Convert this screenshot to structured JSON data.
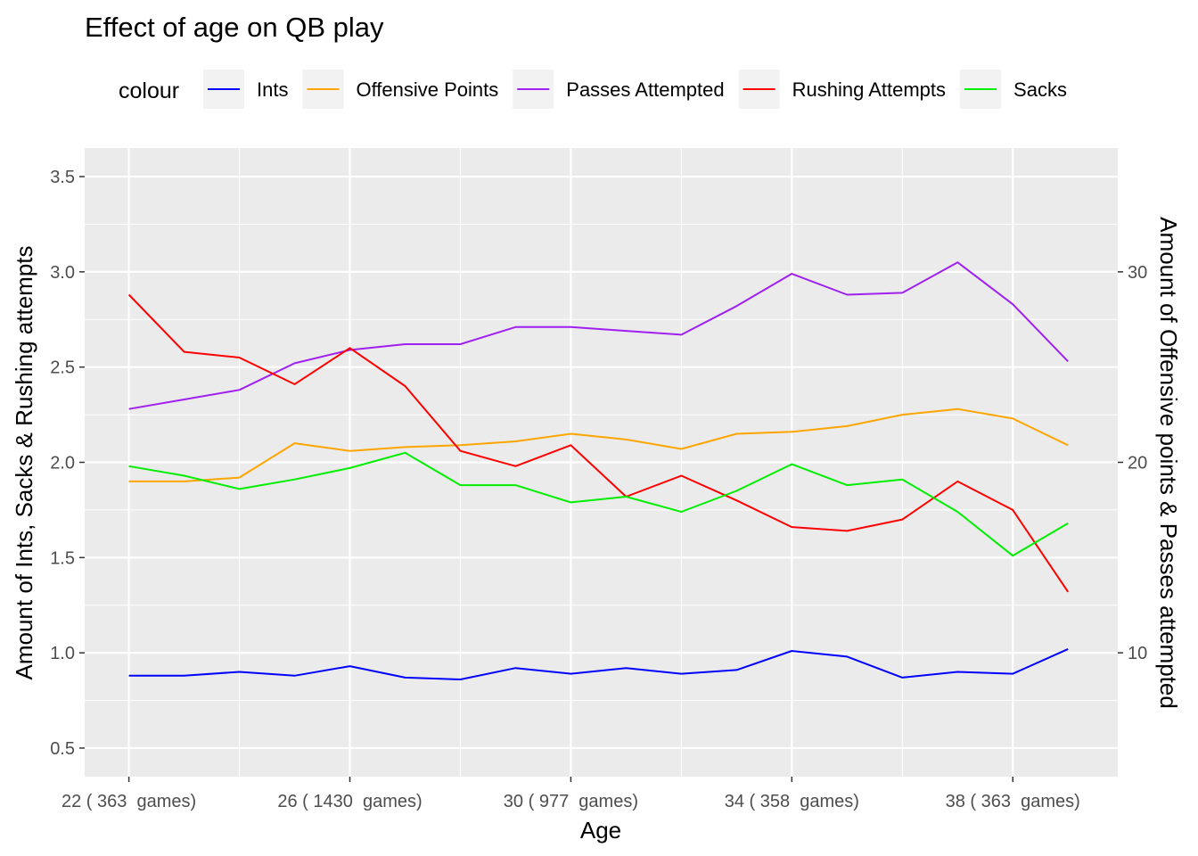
{
  "chart_data": {
    "type": "line",
    "title": "Effect of age on QB play",
    "xlabel": "Age",
    "ylabel_left": "Amount of Ints, Sacks & Rushing attempts",
    "ylabel_right": "Amount of Offensive points & Passes attempted",
    "legend_title": "colour",
    "legend_position": "top",
    "x": [
      22,
      23,
      24,
      25,
      26,
      27,
      28,
      29,
      30,
      31,
      32,
      33,
      34,
      35,
      36,
      37,
      38,
      39
    ],
    "x_ticks": [
      22,
      26,
      30,
      34,
      38
    ],
    "x_tick_labels": [
      "22 ( 363  games)",
      "26 ( 1430  games)",
      "30 ( 977  games)",
      "34 ( 358  games)",
      "38 ( 363  games)"
    ],
    "xlim": [
      21.2,
      39.9
    ],
    "ylim_left": [
      0.35,
      3.65
    ],
    "y_ticks_left": [
      "0.5",
      "1.0",
      "1.5",
      "2.0",
      "2.5",
      "3.0",
      "3.5"
    ],
    "ylim_right": [
      3.5,
      36.5
    ],
    "y_ticks_right": [
      "10",
      "20",
      "30"
    ],
    "grid": true,
    "series": [
      {
        "name": "Ints",
        "axis": "left",
        "color": "#0000ff",
        "values": [
          0.88,
          0.88,
          0.9,
          0.88,
          0.93,
          0.87,
          0.86,
          0.92,
          0.89,
          0.92,
          0.89,
          0.91,
          1.01,
          0.98,
          0.87,
          0.9,
          0.89,
          1.02
        ]
      },
      {
        "name": "Offensive Points",
        "axis": "right",
        "color": "#ffa500",
        "values": [
          19.0,
          19.0,
          19.2,
          21.0,
          20.6,
          20.8,
          20.9,
          21.1,
          21.5,
          21.2,
          20.7,
          21.5,
          21.6,
          21.9,
          22.5,
          22.8,
          22.3,
          20.9
        ]
      },
      {
        "name": "Passes Attempted",
        "axis": "right",
        "color": "#a020f0",
        "values": [
          22.8,
          23.3,
          23.8,
          25.2,
          25.9,
          26.2,
          26.2,
          27.1,
          27.1,
          26.9,
          26.7,
          28.2,
          29.9,
          28.8,
          28.9,
          30.5,
          28.3,
          25.3
        ]
      },
      {
        "name": "Rushing Attempts",
        "axis": "left",
        "color": "#ff0000",
        "values": [
          2.88,
          2.58,
          2.55,
          2.41,
          2.6,
          2.4,
          2.06,
          1.98,
          2.09,
          1.82,
          1.93,
          1.8,
          1.66,
          1.64,
          1.7,
          1.9,
          1.75,
          1.32
        ]
      },
      {
        "name": "Sacks",
        "axis": "left",
        "color": "#00ee00",
        "values": [
          1.98,
          1.93,
          1.86,
          1.91,
          1.97,
          2.05,
          1.88,
          1.88,
          1.79,
          1.82,
          1.74,
          1.85,
          1.99,
          1.88,
          1.91,
          1.74,
          1.51,
          1.68
        ]
      }
    ]
  }
}
